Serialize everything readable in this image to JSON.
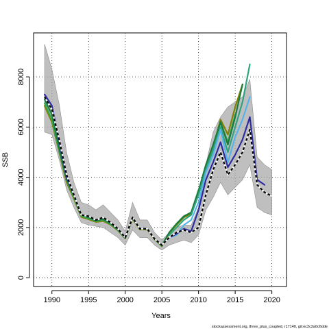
{
  "chart_data": {
    "type": "line",
    "xlabel": "Years",
    "ylabel": "SSB",
    "xlim": [
      1987.5,
      2022
    ],
    "ylim": [
      -350,
      9750
    ],
    "xticks": [
      1990,
      1995,
      2000,
      2005,
      2010,
      2015,
      2020
    ],
    "yticks": [
      0,
      2000,
      4000,
      6000,
      8000
    ],
    "grid": true,
    "footnote": "stockassessment.org, three_plus_coupled, r17140, git:ec2c2a0c6dde",
    "confidence_band": {
      "x": [
        1989,
        1990,
        1991,
        1992,
        1993,
        1994,
        1995,
        1996,
        1997,
        1998,
        1999,
        2000,
        2001,
        2002,
        2003,
        2004,
        2005,
        2006,
        2007,
        2008,
        2009,
        2010,
        2011,
        2012,
        2013,
        2014,
        2015,
        2016,
        2017,
        2018,
        2019,
        2020
      ],
      "upper": [
        9300,
        8300,
        6900,
        5000,
        3800,
        3000,
        2900,
        2700,
        2900,
        2600,
        2300,
        1850,
        3000,
        2300,
        2300,
        1800,
        1500,
        1800,
        2000,
        2100,
        2100,
        2800,
        4500,
        5800,
        6400,
        6800,
        7000,
        7200,
        7900,
        4800,
        4500,
        4300
      ],
      "lower": [
        5800,
        5700,
        4700,
        3500,
        2800,
        2200,
        2100,
        2050,
        2000,
        1800,
        1600,
        1300,
        1900,
        1600,
        1600,
        1300,
        1100,
        1300,
        1400,
        1500,
        1400,
        1700,
        2700,
        3200,
        3800,
        3300,
        3600,
        3900,
        4500,
        2800,
        2600,
        2500
      ]
    },
    "series": [
      {
        "color": "#000000",
        "dashed": true,
        "x": [
          1989,
          1990,
          1991,
          1992,
          1993,
          1994,
          1995,
          1996,
          1997,
          1998,
          1999,
          2000,
          2001,
          2002,
          2003,
          2004,
          2005,
          2006,
          2007,
          2008,
          2009,
          2010,
          2011,
          2012,
          2013,
          2014,
          2015,
          2016,
          2017,
          2018,
          2019,
          2020
        ],
        "values": [
          7200,
          6700,
          5500,
          4100,
          3300,
          2500,
          2450,
          2300,
          2400,
          2200,
          1950,
          1600,
          2400,
          1950,
          1950,
          1550,
          1300,
          1600,
          1800,
          1900,
          1800,
          2000,
          3300,
          4300,
          5000,
          4100,
          4500,
          5000,
          5900,
          3700,
          3400,
          3250
        ]
      },
      {
        "color": "#808000",
        "x": [
          1989,
          1990,
          1991,
          1992,
          1993,
          1994,
          1995,
          1996,
          1997,
          1998,
          1999,
          2000,
          2001,
          2002,
          2003,
          2004,
          2005,
          2006,
          2007,
          2008,
          2009,
          2010,
          2011,
          2012,
          2013,
          2014,
          2015,
          2016
        ],
        "values": [
          6850,
          6200,
          5000,
          3800,
          3150,
          2420,
          2330,
          2220,
          2260,
          2110,
          1880,
          1560,
          2350,
          1920,
          1920,
          1530,
          1250,
          1780,
          2100,
          2400,
          2550,
          3400,
          4400,
          5200,
          6300,
          5700,
          6800,
          7700
        ]
      },
      {
        "color": "#34a853",
        "x": [
          1989,
          1990,
          1991,
          1992,
          1993,
          1994,
          1995,
          1996,
          1997,
          1998,
          1999,
          2000,
          2001,
          2002,
          2003,
          2004,
          2005,
          2006,
          2007,
          2008,
          2009,
          2010,
          2011,
          2012,
          2013,
          2014,
          2015
        ],
        "values": [
          6950,
          6300,
          5050,
          3900,
          3200,
          2460,
          2360,
          2250,
          2300,
          2130,
          1900,
          1570,
          2380,
          1940,
          1940,
          1540,
          1270,
          1800,
          2150,
          2450,
          2600,
          3500,
          4300,
          5100,
          6200,
          5400,
          6500
        ]
      },
      {
        "color": "#1b7a3e",
        "x": [
          1989,
          1990,
          1991,
          1992,
          1993,
          1994,
          1995,
          1996,
          1997,
          1998,
          1999,
          2000,
          2001,
          2002,
          2003,
          2004,
          2005,
          2006,
          2007,
          2008,
          2009,
          2010,
          2011,
          2012,
          2013,
          2014,
          2015,
          2016
        ],
        "values": [
          7100,
          6500,
          5150,
          3950,
          3250,
          2500,
          2400,
          2280,
          2330,
          2160,
          1920,
          1580,
          2400,
          1950,
          1950,
          1550,
          1280,
          1800,
          2150,
          2450,
          2600,
          3450,
          4500,
          5300,
          6200,
          5300,
          6400,
          7700
        ]
      },
      {
        "color": "#2fa37f",
        "x": [
          2006,
          2007,
          2008,
          2009,
          2010,
          2011,
          2012,
          2013,
          2014,
          2015,
          2016,
          2017
        ],
        "values": [
          1700,
          2000,
          2300,
          2500,
          3300,
          4300,
          5100,
          6000,
          5000,
          6000,
          7000,
          8500
        ]
      },
      {
        "color": "#56b4e9",
        "x": [
          2006,
          2007,
          2008,
          2009,
          2010,
          2011,
          2012,
          2013,
          2014,
          2015,
          2016,
          2017
        ],
        "values": [
          1600,
          1700,
          2100,
          2300,
          3000,
          4200,
          4900,
          5900,
          4600,
          5600,
          6300,
          7200
        ]
      },
      {
        "color": "#2c2ca0",
        "x": [
          1989,
          1990,
          1991,
          1992,
          1993,
          1994,
          1995,
          1996,
          1997,
          1998,
          1999,
          2000,
          2001,
          2002,
          2003,
          2004,
          2005,
          2006,
          2007,
          2008,
          2009,
          2010,
          2011,
          2012,
          2013,
          2014,
          2015,
          2016,
          2017,
          2018,
          2019
        ],
        "values": [
          7300,
          6850,
          5400,
          4000,
          3300,
          2500,
          2450,
          2300,
          2400,
          2200,
          1950,
          1600,
          2400,
          1950,
          1950,
          1550,
          1300,
          1600,
          1750,
          1950,
          1850,
          2700,
          3900,
          4600,
          5400,
          4400,
          4900,
          5500,
          6400,
          3900,
          3700
        ]
      }
    ]
  }
}
